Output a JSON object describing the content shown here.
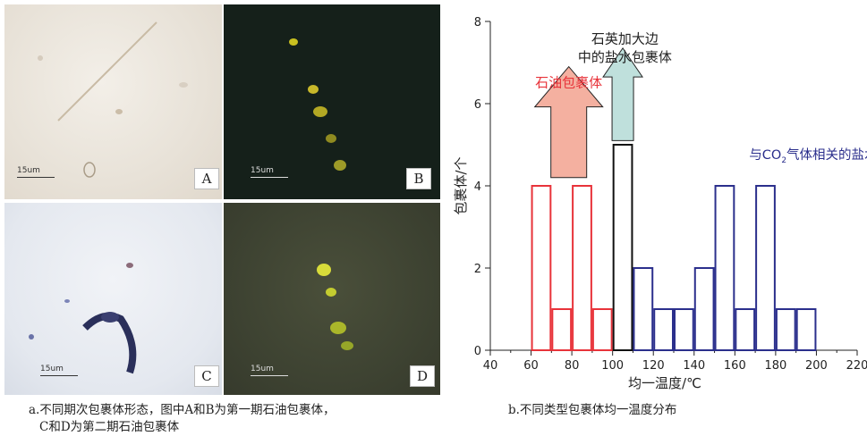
{
  "left_figure": {
    "panels": [
      {
        "label": "A",
        "scale": "15um"
      },
      {
        "label": "B",
        "scale": "15um"
      },
      {
        "label": "C",
        "scale": "15um"
      },
      {
        "label": "D",
        "scale": "15um"
      }
    ],
    "caption_line1": "a.不同期次包裹体形态，图中A和B为第一期石油包裹体，",
    "caption_line2": "C和D为第二期石油包裹体"
  },
  "right_figure": {
    "caption": "b.不同类型包裹体均一温度分布"
  },
  "chart_data": {
    "type": "bar",
    "xlabel": "均一温度/℃",
    "ylabel": "包裹体/个",
    "xlim": [
      40,
      220
    ],
    "ylim": [
      0,
      8
    ],
    "xticks": [
      40,
      60,
      80,
      100,
      120,
      140,
      160,
      180,
      200,
      220
    ],
    "yticks": [
      0,
      2,
      4,
      6,
      8
    ],
    "bin_width": 10,
    "series": [
      {
        "color": "#e8333a",
        "bins": [
          {
            "x0": 60,
            "x1": 70,
            "count": 4
          },
          {
            "x0": 70,
            "x1": 80,
            "count": 1
          },
          {
            "x0": 80,
            "x1": 90,
            "count": 4
          },
          {
            "x0": 90,
            "x1": 100,
            "count": 1
          }
        ]
      },
      {
        "color": "#111111",
        "bins": [
          {
            "x0": 100,
            "x1": 110,
            "count": 5
          }
        ]
      },
      {
        "color": "#2b2f8c",
        "bins": [
          {
            "x0": 110,
            "x1": 120,
            "count": 2
          },
          {
            "x0": 120,
            "x1": 130,
            "count": 1
          },
          {
            "x0": 130,
            "x1": 140,
            "count": 1
          },
          {
            "x0": 140,
            "x1": 150,
            "count": 2
          },
          {
            "x0": 150,
            "x1": 160,
            "count": 4
          },
          {
            "x0": 160,
            "x1": 170,
            "count": 1
          },
          {
            "x0": 170,
            "x1": 180,
            "count": 4
          },
          {
            "x0": 180,
            "x1": 190,
            "count": 1
          },
          {
            "x0": 190,
            "x1": 200,
            "count": 1
          }
        ]
      }
    ],
    "annotations": [
      {
        "text": "石油包裹体",
        "color": "#e8333a"
      },
      {
        "text_line1": "石英加大边",
        "text_line2": "中的盐水包裹体",
        "color": "#222222"
      },
      {
        "text_prefix": "与CO",
        "text_sub": "2",
        "text_suffix": "气体相关的盐水包裹体",
        "color": "#2b2f8c"
      }
    ],
    "arrows": [
      {
        "name": "oil-arrow",
        "fill": "#f4b0a0"
      },
      {
        "name": "brine-arrow",
        "fill": "#bfe0dc"
      }
    ]
  }
}
